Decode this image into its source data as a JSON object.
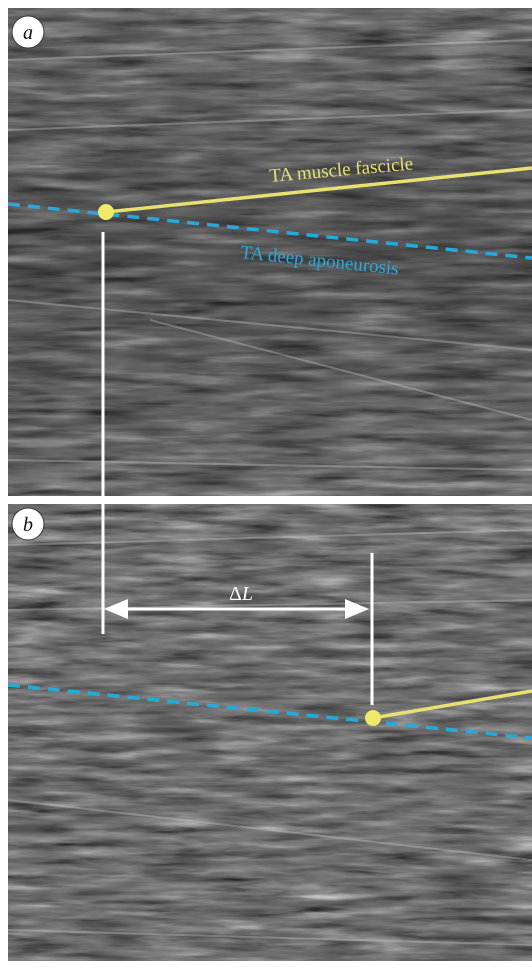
{
  "panel_a": {
    "label": "a"
  },
  "panel_b": {
    "label": "b"
  },
  "annotations": {
    "fascicle": "TA muscle fascicle",
    "aponeurosis": "TA deep aponeurosis",
    "delta_symbol": "Δ",
    "delta_var": "L"
  },
  "colors": {
    "fascicle": "#e8e070",
    "aponeurosis": "#29a8dc",
    "marker": "#f0e868",
    "guide": "#ffffff"
  }
}
